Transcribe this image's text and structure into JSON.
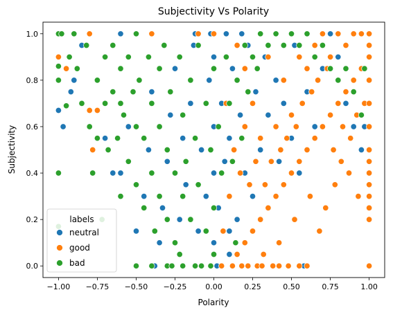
{
  "chart_data": {
    "type": "scatter",
    "title": "Subjectivity Vs Polarity",
    "xlabel": "Polarity",
    "ylabel": "Subjectivity",
    "xlim": [
      -1.1,
      1.1
    ],
    "ylim": [
      -0.05,
      1.05
    ],
    "xticks": [
      -1.0,
      -0.75,
      -0.5,
      -0.25,
      0.0,
      0.25,
      0.5,
      0.75,
      1.0
    ],
    "xtick_labels": [
      "−1.00",
      "−0.75",
      "−0.50",
      "−0.25",
      "0.00",
      "0.25",
      "0.50",
      "0.75",
      "1.00"
    ],
    "yticks": [
      0.0,
      0.2,
      0.4,
      0.6,
      0.8,
      1.0
    ],
    "ytick_labels": [
      "0.0",
      "0.2",
      "0.4",
      "0.6",
      "0.8",
      "1.0"
    ],
    "grid": false,
    "legend": {
      "title": "labels",
      "placement": "lower-left",
      "entries": [
        "neutral",
        "good",
        "bad"
      ]
    },
    "series": [
      {
        "name": "neutral",
        "color": "#1f77b4",
        "points": [
          [
            -1.0,
            0.67
          ],
          [
            -0.97,
            0.6
          ],
          [
            -0.92,
            0.75
          ],
          [
            -0.9,
            0.8
          ],
          [
            -0.85,
            0.95
          ],
          [
            -0.7,
            0.55
          ],
          [
            -0.65,
            0.4
          ],
          [
            -0.6,
            0.4
          ],
          [
            -0.55,
            0.6
          ],
          [
            -0.5,
            0.15
          ],
          [
            -0.45,
            0.3
          ],
          [
            -0.42,
            0.5
          ],
          [
            -0.4,
            0.75
          ],
          [
            -0.35,
            0.1
          ],
          [
            -0.33,
            0.25
          ],
          [
            -0.3,
            0.45
          ],
          [
            -0.28,
            0.65
          ],
          [
            -0.25,
            0.85
          ],
          [
            -0.22,
            0.2
          ],
          [
            -0.2,
            0.55
          ],
          [
            -0.18,
            0.35
          ],
          [
            -0.15,
            0.7
          ],
          [
            -0.13,
            0.95
          ],
          [
            -0.1,
            0.15
          ],
          [
            -0.08,
            0.5
          ],
          [
            -0.05,
            0.3
          ],
          [
            -0.03,
            0.8
          ],
          [
            0.0,
            0.1
          ],
          [
            0.0,
            0.4
          ],
          [
            0.0,
            0.6
          ],
          [
            0.0,
            0.9
          ],
          [
            0.02,
            0.0
          ],
          [
            0.03,
            0.25
          ],
          [
            0.05,
            0.7
          ],
          [
            0.07,
            0.45
          ],
          [
            0.1,
            0.05
          ],
          [
            0.1,
            0.55
          ],
          [
            0.12,
            0.85
          ],
          [
            0.15,
            0.2
          ],
          [
            0.17,
            0.65
          ],
          [
            0.2,
            0.4
          ],
          [
            0.22,
            0.95
          ],
          [
            0.25,
            0.3
          ],
          [
            0.27,
            0.75
          ],
          [
            0.3,
            0.5
          ],
          [
            0.33,
            0.9
          ],
          [
            0.35,
            0.65
          ],
          [
            0.4,
            0.8
          ],
          [
            0.42,
            0.45
          ],
          [
            0.45,
            0.7
          ],
          [
            0.5,
            0.55
          ],
          [
            0.52,
            0.95
          ],
          [
            0.55,
            0.4
          ],
          [
            0.58,
            0.0
          ],
          [
            0.6,
            0.75
          ],
          [
            0.65,
            0.6
          ],
          [
            0.7,
            0.85
          ],
          [
            0.75,
            1.0
          ],
          [
            0.8,
            0.9
          ],
          [
            0.85,
            0.7
          ],
          [
            0.9,
            0.6
          ],
          [
            0.95,
            0.5
          ],
          [
            0.97,
            0.6
          ],
          [
            -0.02,
            1.0
          ],
          [
            -0.12,
            1.0
          ],
          [
            0.08,
            1.0
          ],
          [
            0.18,
            1.0
          ],
          [
            -0.6,
            1.0
          ],
          [
            -0.38,
            0.0
          ],
          [
            0.1,
            0.15
          ]
        ]
      },
      {
        "name": "good",
        "color": "#ff7f0e",
        "points": [
          [
            -1.0,
            0.9
          ],
          [
            -0.95,
            0.85
          ],
          [
            -0.8,
            0.67
          ],
          [
            -0.78,
            0.5
          ],
          [
            -0.75,
            0.67
          ],
          [
            0.05,
            0.0
          ],
          [
            0.12,
            0.0
          ],
          [
            0.15,
            0.05
          ],
          [
            0.2,
            0.1
          ],
          [
            0.22,
            0.0
          ],
          [
            0.25,
            0.15
          ],
          [
            0.28,
            0.0
          ],
          [
            0.3,
            0.2
          ],
          [
            0.32,
            0.05
          ],
          [
            0.35,
            0.25
          ],
          [
            0.38,
            0.0
          ],
          [
            0.4,
            0.3
          ],
          [
            0.42,
            0.1
          ],
          [
            0.45,
            0.35
          ],
          [
            0.48,
            0.0
          ],
          [
            0.5,
            0.4
          ],
          [
            0.52,
            0.2
          ],
          [
            0.55,
            0.45
          ],
          [
            0.6,
            0.0
          ],
          [
            0.6,
            0.5
          ],
          [
            0.62,
            0.3
          ],
          [
            0.65,
            0.55
          ],
          [
            0.68,
            0.15
          ],
          [
            0.7,
            0.6
          ],
          [
            0.72,
            0.25
          ],
          [
            0.75,
            0.65
          ],
          [
            0.78,
            0.35
          ],
          [
            0.8,
            0.7
          ],
          [
            0.82,
            0.45
          ],
          [
            0.85,
            0.75
          ],
          [
            0.88,
            0.55
          ],
          [
            0.9,
            0.8
          ],
          [
            0.92,
            0.65
          ],
          [
            0.95,
            0.85
          ],
          [
            0.97,
            0.7
          ],
          [
            1.0,
            1.0
          ],
          [
            1.0,
            0.95
          ],
          [
            1.0,
            0.9
          ],
          [
            1.0,
            0.8
          ],
          [
            1.0,
            0.7
          ],
          [
            1.0,
            0.6
          ],
          [
            1.0,
            0.5
          ],
          [
            1.0,
            0.45
          ],
          [
            1.0,
            0.4
          ],
          [
            1.0,
            0.35
          ],
          [
            1.0,
            0.3
          ],
          [
            1.0,
            0.25
          ],
          [
            1.0,
            0.2
          ],
          [
            1.0,
            0.0
          ],
          [
            0.15,
            0.95
          ],
          [
            0.2,
            0.85
          ],
          [
            0.25,
            0.7
          ],
          [
            0.3,
            0.55
          ],
          [
            0.35,
            0.9
          ],
          [
            0.4,
            0.6
          ],
          [
            0.45,
            0.8
          ],
          [
            0.5,
            0.65
          ],
          [
            0.55,
            0.9
          ],
          [
            0.6,
            0.85
          ],
          [
            0.65,
            0.95
          ],
          [
            0.7,
            1.0
          ],
          [
            0.75,
            0.9
          ],
          [
            0.8,
            1.0
          ],
          [
            0.85,
            0.95
          ],
          [
            0.9,
            1.0
          ],
          [
            0.95,
            1.0
          ],
          [
            0.1,
            0.3
          ],
          [
            0.13,
            0.5
          ],
          [
            0.17,
            0.4
          ],
          [
            0.2,
            0.6
          ],
          [
            0.23,
            0.35
          ],
          [
            0.27,
            0.45
          ],
          [
            0.33,
            0.35
          ],
          [
            0.37,
            0.45
          ],
          [
            0.43,
            0.5
          ],
          [
            0.47,
            0.55
          ],
          [
            0.53,
            0.6
          ],
          [
            0.57,
            0.7
          ],
          [
            0.63,
            0.75
          ],
          [
            0.67,
            0.8
          ],
          [
            0.73,
            0.85
          ],
          [
            0.77,
            0.5
          ],
          [
            0.83,
            0.6
          ],
          [
            0.87,
            0.4
          ],
          [
            0.93,
            0.3
          ],
          [
            -0.1,
            1.0
          ],
          [
            -0.4,
            1.0
          ],
          [
            -0.8,
            1.0
          ],
          [
            0.0,
            1.0
          ],
          [
            0.08,
            0.7
          ],
          [
            0.06,
            0.15
          ],
          [
            0.55,
            0.0
          ],
          [
            0.42,
            0.0
          ],
          [
            0.31,
            0.0
          ],
          [
            0.18,
            0.0
          ]
        ]
      },
      {
        "name": "bad",
        "color": "#2ca02c",
        "points": [
          [
            -1.0,
            1.0
          ],
          [
            -1.0,
            0.86
          ],
          [
            -1.0,
            0.8
          ],
          [
            -1.0,
            0.4
          ],
          [
            -1.0,
            0.17
          ],
          [
            -0.98,
            1.0
          ],
          [
            -0.95,
            0.69
          ],
          [
            -0.93,
            0.9
          ],
          [
            -0.9,
            1.0
          ],
          [
            -0.88,
            0.85
          ],
          [
            -0.85,
            0.7
          ],
          [
            -0.82,
            0.95
          ],
          [
            -0.8,
            0.6
          ],
          [
            -0.78,
            0.4
          ],
          [
            -0.75,
            0.8
          ],
          [
            -0.72,
            0.2
          ],
          [
            -0.7,
            0.9
          ],
          [
            -0.7,
            0.7
          ],
          [
            -0.68,
            0.5
          ],
          [
            -0.65,
            0.95
          ],
          [
            -0.65,
            0.75
          ],
          [
            -0.62,
            0.55
          ],
          [
            -0.6,
            0.85
          ],
          [
            -0.6,
            0.3
          ],
          [
            -0.58,
            0.65
          ],
          [
            -0.55,
            0.9
          ],
          [
            -0.55,
            0.45
          ],
          [
            -0.52,
            0.75
          ],
          [
            -0.5,
            1.0
          ],
          [
            -0.5,
            0.6
          ],
          [
            -0.5,
            0.35
          ],
          [
            -0.5,
            0.0
          ],
          [
            -0.48,
            0.8
          ],
          [
            -0.45,
            0.55
          ],
          [
            -0.45,
            0.25
          ],
          [
            -0.42,
            0.9
          ],
          [
            -0.4,
            0.7
          ],
          [
            -0.4,
            0.4
          ],
          [
            -0.4,
            0.0
          ],
          [
            -0.38,
            0.15
          ],
          [
            -0.35,
            0.85
          ],
          [
            -0.35,
            0.6
          ],
          [
            -0.35,
            0.3
          ],
          [
            -0.32,
            0.95
          ],
          [
            -0.3,
            0.5
          ],
          [
            -0.3,
            0.2
          ],
          [
            -0.3,
            0.0
          ],
          [
            -0.28,
            0.75
          ],
          [
            -0.25,
            0.4
          ],
          [
            -0.25,
            0.1
          ],
          [
            -0.22,
            0.9
          ],
          [
            -0.2,
            0.65
          ],
          [
            -0.2,
            0.3
          ],
          [
            -0.2,
            0.0
          ],
          [
            -0.18,
            0.45
          ],
          [
            -0.15,
            0.8
          ],
          [
            -0.15,
            0.2
          ],
          [
            -0.12,
            0.55
          ],
          [
            -0.1,
            0.95
          ],
          [
            -0.1,
            0.35
          ],
          [
            -0.08,
            0.0
          ],
          [
            -0.05,
            0.7
          ],
          [
            -0.05,
            0.15
          ],
          [
            -0.02,
            0.5
          ],
          [
            0.0,
            0.85
          ],
          [
            0.0,
            0.25
          ],
          [
            0.03,
            0.6
          ],
          [
            0.05,
            0.4
          ],
          [
            0.08,
            0.9
          ],
          [
            0.1,
            0.7
          ],
          [
            0.12,
            0.45
          ],
          [
            0.15,
            0.8
          ],
          [
            0.18,
            0.55
          ],
          [
            0.2,
            0.95
          ],
          [
            0.22,
            0.75
          ],
          [
            0.25,
            0.9
          ],
          [
            0.28,
            0.85
          ],
          [
            0.3,
            1.0
          ],
          [
            0.35,
            0.95
          ],
          [
            0.4,
            1.0
          ],
          [
            0.45,
            0.95
          ],
          [
            0.5,
            1.0
          ],
          [
            0.55,
            0.95
          ],
          [
            0.6,
            1.0
          ],
          [
            0.65,
            0.9
          ],
          [
            0.7,
            0.95
          ],
          [
            0.75,
            0.85
          ],
          [
            0.8,
            0.8
          ],
          [
            0.85,
            0.85
          ],
          [
            0.9,
            0.75
          ],
          [
            0.95,
            0.65
          ],
          [
            0.97,
            0.85
          ],
          [
            -0.27,
            0.0
          ],
          [
            -0.22,
            0.05
          ],
          [
            -0.12,
            0.0
          ],
          [
            -0.02,
            0.0
          ],
          [
            0.0,
            0.05
          ],
          [
            0.14,
            0.1
          ],
          [
            -0.6,
            0.7
          ],
          [
            -0.75,
            0.55
          ]
        ]
      }
    ]
  }
}
